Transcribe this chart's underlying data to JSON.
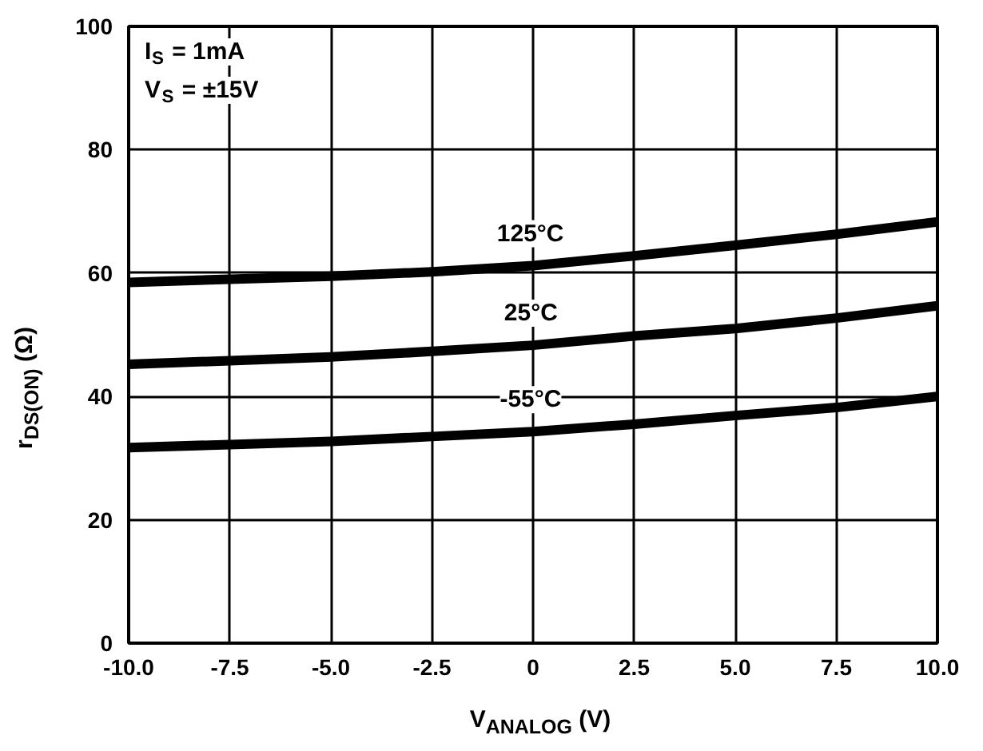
{
  "chart_data": {
    "type": "line",
    "xlabel": "V$_{ANALOG}$ (V)",
    "ylabel": "r$_{DS(ON)}$ (Ω)",
    "x": [
      -10,
      -7.5,
      -5,
      -2.5,
      0,
      2.5,
      5,
      7.5,
      10
    ],
    "series": [
      {
        "name": "125°C",
        "color": "#000000",
        "values": [
          58.5,
          59,
          59.5,
          60.2,
          61.2,
          62.8,
          64.5,
          66.3,
          68.3
        ]
      },
      {
        "name": "25°C",
        "color": "#000000",
        "values": [
          45.2,
          45.8,
          46.4,
          47.3,
          48.3,
          49.8,
          51,
          52.7,
          54.7
        ]
      },
      {
        "name": "-55°C",
        "color": "#000000",
        "values": [
          31.7,
          32.2,
          32.7,
          33.5,
          34.3,
          35.5,
          36.9,
          38.2,
          40
        ]
      }
    ],
    "annotations": [
      "I$_{S}$ = 1mA",
      "V$_{S}$ = ±15V"
    ],
    "xlim": [
      -10,
      10
    ],
    "ylim": [
      0,
      100
    ],
    "xticks": [
      {
        "value": -10,
        "label": "-10.0"
      },
      {
        "value": -7.5,
        "label": "-7.5"
      },
      {
        "value": -5,
        "label": "-5.0"
      },
      {
        "value": -2.5,
        "label": "-2.5"
      },
      0,
      {
        "value": 2.5,
        "label": "2.5"
      },
      {
        "value": 5,
        "label": "5.0"
      },
      {
        "value": 7.5,
        "label": "7.5"
      },
      {
        "value": 10,
        "label": "10.0"
      }
    ],
    "yticks": [
      0,
      20,
      40,
      60,
      80,
      100
    ],
    "grid": true,
    "line_style": "solid"
  }
}
